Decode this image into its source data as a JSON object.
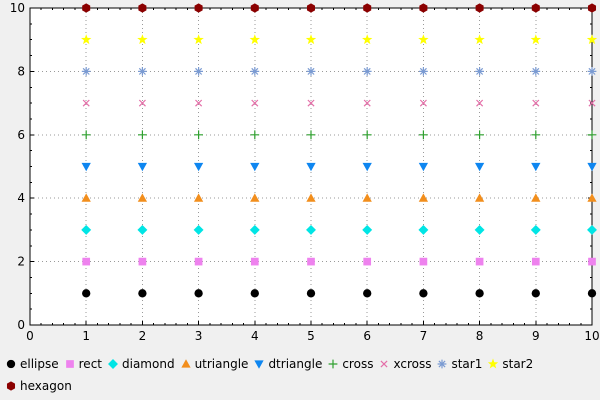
{
  "figure": {
    "background": "#f0f0f0"
  },
  "chart_data": {
    "type": "scatter",
    "title": "",
    "xlabel": "",
    "ylabel": "",
    "xlim": [
      0,
      10
    ],
    "ylim": [
      0,
      10
    ],
    "x_ticks": [
      0,
      1,
      2,
      3,
      4,
      5,
      6,
      7,
      8,
      9,
      10
    ],
    "y_ticks": [
      0,
      2,
      4,
      6,
      8,
      10
    ],
    "x_minor_tick_step": 0.2,
    "y_minor_tick_step": 0.5,
    "grid": true,
    "grid_color": "#9a9a9a",
    "axis_color": "#000000",
    "plot_background": "#ffffff",
    "legend_position": "bottom",
    "x": [
      1,
      2,
      3,
      4,
      5,
      6,
      7,
      8,
      9,
      10
    ],
    "series": [
      {
        "name": "ellipse",
        "marker": "ellipse",
        "color": "#000000",
        "values": [
          1,
          1,
          1,
          1,
          1,
          1,
          1,
          1,
          1,
          1
        ]
      },
      {
        "name": "rect",
        "marker": "rect",
        "color": "#ee82ee",
        "values": [
          2,
          2,
          2,
          2,
          2,
          2,
          2,
          2,
          2,
          2
        ]
      },
      {
        "name": "diamond",
        "marker": "diamond",
        "color": "#00e5e5",
        "values": [
          3,
          3,
          3,
          3,
          3,
          3,
          3,
          3,
          3,
          3
        ]
      },
      {
        "name": "utriangle",
        "marker": "utriangle",
        "color": "#f28e1c",
        "values": [
          4,
          4,
          4,
          4,
          4,
          4,
          4,
          4,
          4,
          4
        ]
      },
      {
        "name": "dtriangle",
        "marker": "dtriangle",
        "color": "#0e86f0",
        "values": [
          5,
          5,
          5,
          5,
          5,
          5,
          5,
          5,
          5,
          5
        ]
      },
      {
        "name": "cross",
        "marker": "cross",
        "color": "#2fa02f",
        "values": [
          6,
          6,
          6,
          6,
          6,
          6,
          6,
          6,
          6,
          6
        ]
      },
      {
        "name": "xcross",
        "marker": "xcross",
        "color": "#e46fa8",
        "values": [
          7,
          7,
          7,
          7,
          7,
          7,
          7,
          7,
          7,
          7
        ]
      },
      {
        "name": "star1",
        "marker": "star1",
        "color": "#7b9bd2",
        "values": [
          8,
          8,
          8,
          8,
          8,
          8,
          8,
          8,
          8,
          8
        ]
      },
      {
        "name": "star2",
        "marker": "star2",
        "color": "#ffff00",
        "values": [
          9,
          9,
          9,
          9,
          9,
          9,
          9,
          9,
          9,
          9
        ]
      },
      {
        "name": "hexagon",
        "marker": "hexagon",
        "color": "#8b0000",
        "values": [
          10,
          10,
          10,
          10,
          10,
          10,
          10,
          10,
          10,
          10
        ]
      }
    ]
  }
}
